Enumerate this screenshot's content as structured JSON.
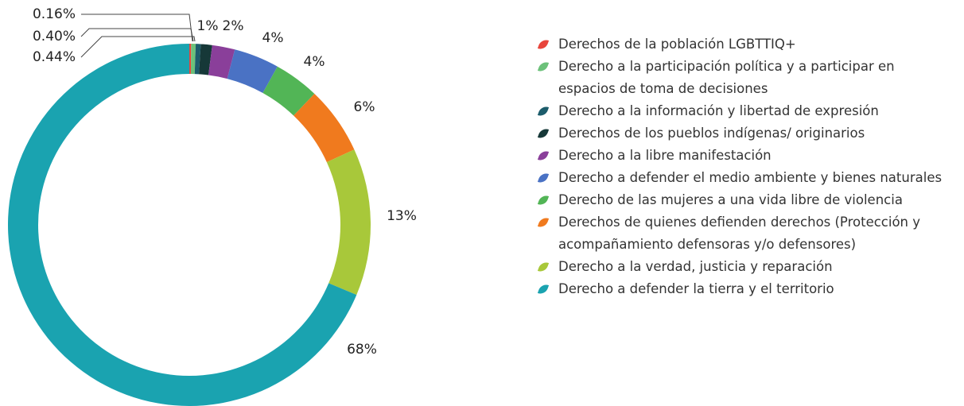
{
  "chart_data": {
    "type": "donut",
    "categories": [
      "Derechos de la población LGBTTIQ+",
      "Derecho a la participación política y a participar en espacios de toma de decisiones",
      "Derecho a la información y libertad de expresión",
      "Derechos de los pueblos indígenas/ originarios",
      "Derecho a la libre manifestación",
      "Derecho a defender el medio ambiente y bienes naturales",
      "Derecho de las mujeres a una vida libre de violencia",
      "Derechos de quienes defienden derechos (Protección y acompañamiento defensoras y/o defensores)",
      "Derecho a la verdad, justicia y reparación",
      "Derecho a defender la tierra y el territorio"
    ],
    "values": [
      0.16,
      0.4,
      0.44,
      1,
      2,
      4,
      4,
      6,
      13,
      68
    ],
    "value_labels": [
      "0.16%",
      "0.40%",
      "0.44%",
      "1%",
      "2%",
      "4%",
      "4%",
      "6%",
      "13%",
      "68%"
    ],
    "colors": [
      "#e8453c",
      "#6cc17a",
      "#1c5c6b",
      "#163838",
      "#8a3f9a",
      "#4a72c4",
      "#52b556",
      "#f07a1e",
      "#a8c83a",
      "#1aa3b0"
    ],
    "legend": "right"
  }
}
